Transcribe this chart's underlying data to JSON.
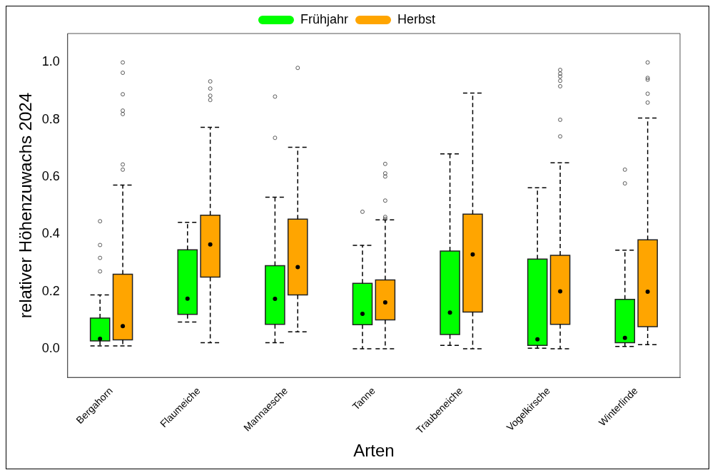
{
  "chart_data": {
    "type": "box",
    "xlabel": "Arten",
    "ylabel": "relativer Höhenzuwachs 2024",
    "legend": "top",
    "ylim": [
      -0.1,
      1.1
    ],
    "yticks": [
      {
        "value": 0,
        "label": "0.0"
      },
      0.2,
      0.4,
      0.6,
      0.8,
      {
        "value": 1,
        "label": "1.0"
      }
    ],
    "categories": [
      "Bergahorn",
      "Flaumeiche",
      "Mannaesche",
      "Tanne",
      "Traubeneiche",
      "Vogelkirsche",
      "Winterlinde"
    ],
    "series": [
      {
        "name": "Frühjahr",
        "color": "#00ff00",
        "boxes": [
          {
            "low": 0.01,
            "q1": 0.027,
            "median": 0.035,
            "q3": 0.107,
            "high": 0.188,
            "outliers": [
              0.27,
              0.317,
              0.362,
              0.445
            ]
          },
          {
            "low": 0.093,
            "q1": 0.12,
            "median": 0.175,
            "q3": 0.345,
            "high": 0.441
          },
          {
            "low": 0.021,
            "q1": 0.085,
            "median": 0.174,
            "q3": 0.29,
            "high": 0.529,
            "outliers": [
              0.736,
              0.88
            ]
          },
          {
            "low": 0.0,
            "q1": 0.084,
            "median": 0.122,
            "q3": 0.228,
            "high": 0.361,
            "outliers": [
              0.478
            ]
          },
          {
            "low": 0.012,
            "q1": 0.05,
            "median": 0.126,
            "q3": 0.341,
            "high": 0.68
          },
          {
            "low": 0.002,
            "q1": 0.012,
            "median": 0.033,
            "q3": 0.313,
            "high": 0.562
          },
          {
            "low": 0.008,
            "q1": 0.021,
            "median": 0.038,
            "q3": 0.172,
            "high": 0.344,
            "outliers": [
              0.577,
              0.625
            ]
          }
        ]
      },
      {
        "name": "Herbst",
        "color": "#ffa500",
        "boxes": [
          {
            "low": 0.01,
            "q1": 0.031,
            "median": 0.079,
            "q3": 0.26,
            "high": 0.571,
            "outliers": [
              0.625,
              0.643,
              0.819,
              0.831,
              0.888,
              0.963,
              0.999
            ]
          },
          {
            "low": 0.021,
            "q1": 0.25,
            "median": 0.364,
            "q3": 0.466,
            "high": 0.773,
            "outliers": [
              0.868,
              0.883,
              0.908,
              0.933
            ]
          },
          {
            "low": 0.059,
            "q1": 0.188,
            "median": 0.285,
            "q3": 0.452,
            "high": 0.703,
            "outliers": [
              0.98
            ]
          },
          {
            "low": 0.0,
            "q1": 0.101,
            "median": 0.162,
            "q3": 0.24,
            "high": 0.45,
            "outliers": [
              0.453,
              0.46,
              0.517,
              0.601,
              0.612,
              0.645
            ]
          },
          {
            "low": 0.0,
            "q1": 0.128,
            "median": 0.329,
            "q3": 0.47,
            "high": 0.892
          },
          {
            "low": 0.0,
            "q1": 0.085,
            "median": 0.2,
            "q3": 0.326,
            "high": 0.649,
            "outliers": [
              0.741,
              0.799,
              0.916,
              0.935,
              0.95,
              0.96,
              0.973
            ]
          },
          {
            "low": 0.014,
            "q1": 0.077,
            "median": 0.199,
            "q3": 0.38,
            "high": 0.805,
            "outliers": [
              0.859,
              0.89,
              0.939,
              0.945,
              0.999
            ]
          }
        ]
      }
    ]
  }
}
